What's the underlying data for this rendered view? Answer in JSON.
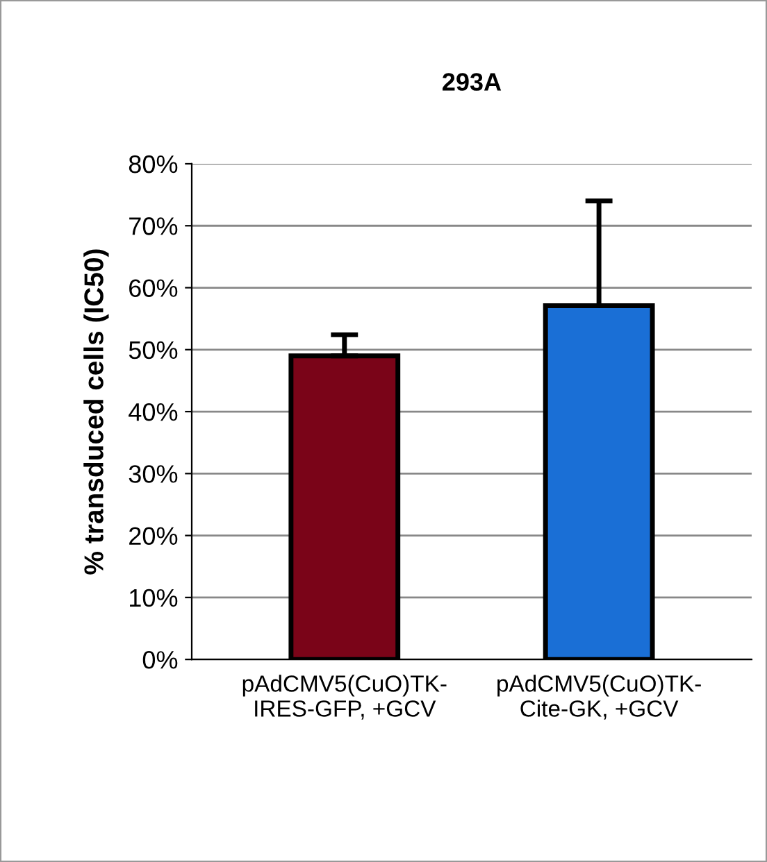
{
  "chart_data": {
    "type": "bar",
    "title": "293A",
    "ylabel": "% transduced cells (IC50)",
    "categories": [
      "pAdCMV5(CuO)TK-\nIRES-GFP, +GCV",
      "pAdCMV5(CuO)TK-\nCite-GK, +GCV"
    ],
    "values": [
      49.0,
      57.1
    ],
    "colors": [
      "#7a0418",
      "#1a6fd6"
    ],
    "errors": [
      [
        49.0,
        52.4
      ],
      [
        57.1,
        74.0
      ]
    ],
    "ylim": [
      0,
      80
    ],
    "yticks": [
      {
        "value": 0,
        "label": "0%"
      },
      {
        "value": 10,
        "label": "10%"
      },
      {
        "value": 20,
        "label": "20%"
      },
      {
        "value": 30,
        "label": "30%"
      },
      {
        "value": 40,
        "label": "40%"
      },
      {
        "value": 50,
        "label": "50%"
      },
      {
        "value": 60,
        "label": "60%"
      },
      {
        "value": 70,
        "label": "70%"
      },
      {
        "value": 80,
        "label": "80%"
      }
    ],
    "grid": "y"
  }
}
